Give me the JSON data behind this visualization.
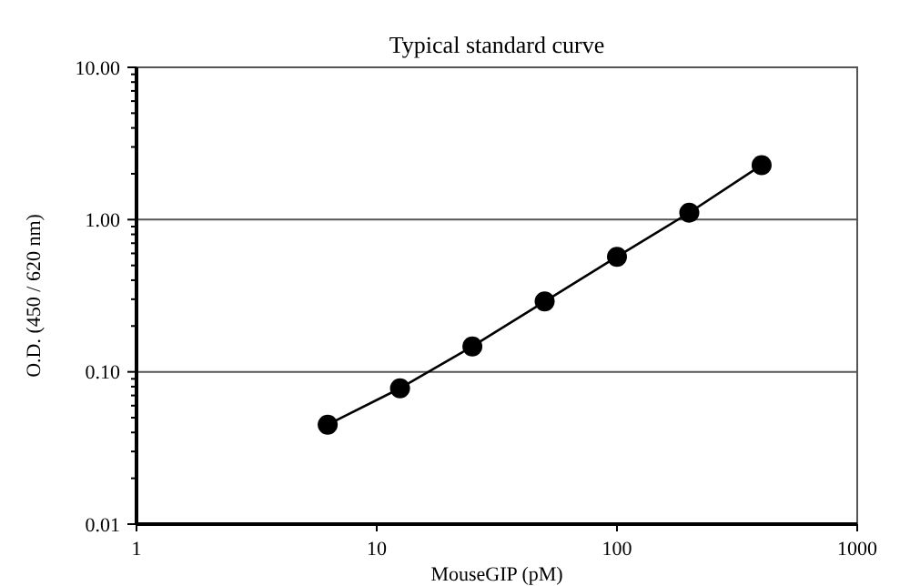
{
  "chart_data": {
    "type": "line",
    "title": "Typical standard curve",
    "xlabel": "MouseGIP (pM)",
    "ylabel": "O.D. (450 / 620 nm)",
    "x": [
      6.25,
      12.5,
      25,
      50,
      100,
      200,
      400
    ],
    "series": [
      {
        "color": "#000000",
        "values": [
          0.045,
          0.078,
          0.147,
          0.29,
          0.57,
          1.11,
          2.28
        ]
      }
    ],
    "log": "xy",
    "xlim": [
      1,
      1000
    ],
    "xticks": [
      1,
      10,
      100,
      1000
    ],
    "ylim": [
      0.01,
      10
    ],
    "yticks": [
      {
        "value": 0.01,
        "label": "0.01"
      },
      {
        "value": 0.1,
        "label": "0.10"
      },
      {
        "value": 1,
        "label": "1.00"
      },
      {
        "value": 10,
        "label": "10.00"
      }
    ],
    "grid": "y",
    "marker": "circle",
    "line_style": "solid"
  }
}
